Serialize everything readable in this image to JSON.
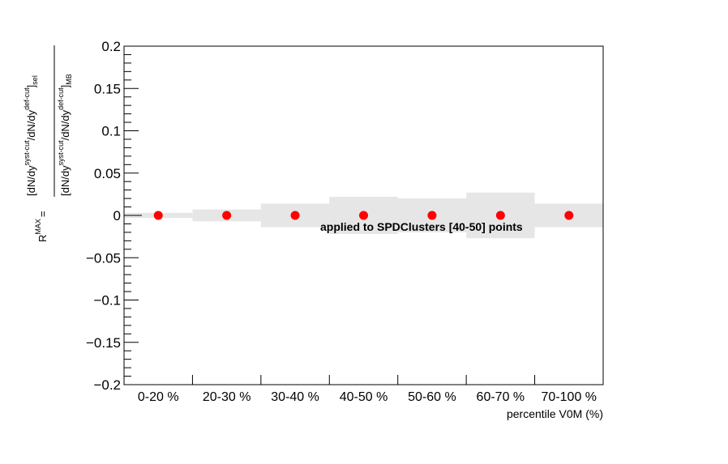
{
  "chart_data": {
    "type": "scatter",
    "categories": [
      "0-20 %",
      "20-30 %",
      "30-40 %",
      "40-50 %",
      "50-60 %",
      "60-70 %",
      "70-100 %"
    ],
    "values": [
      0,
      0,
      0,
      0,
      0,
      0,
      0
    ],
    "systematic_band": [
      {
        "low": -0.003,
        "high": 0.003
      },
      {
        "low": -0.007,
        "high": 0.007
      },
      {
        "low": -0.014,
        "high": 0.014
      },
      {
        "low": -0.022,
        "high": 0.022
      },
      {
        "low": -0.02,
        "high": 0.02
      },
      {
        "low": -0.027,
        "high": 0.027
      },
      {
        "low": -0.014,
        "high": 0.014
      }
    ],
    "ylim": [
      -0.2,
      0.2
    ],
    "y_ticks": [
      "−0.2",
      "−0.15",
      "−0.1",
      "−0.05",
      "0",
      "0.05",
      "0.1",
      "0.15",
      "0.2"
    ],
    "xlabel": "percentile V0M (%)",
    "ylabel_parts": {
      "r": "R",
      "r_sup": "MAX",
      "eq": "=",
      "num_a": "[dN/dy",
      "num_a_sup": "syst-cut",
      "num_b": "/dN/dy",
      "num_b_sup": "def-cut",
      "num_c": "]",
      "num_c_sub": "sel",
      "den_a": "[dN/dy",
      "den_a_sup": "syst-cut",
      "den_b": "/dN/dy",
      "den_b_sup": "def-cut",
      "den_c": "]",
      "den_c_sub": "MB"
    },
    "annotation": "applied to SPDClusters [40-50] points",
    "colors": {
      "marker": "#ff0000",
      "band": "#e6e6e6",
      "axis": "#000000"
    }
  }
}
